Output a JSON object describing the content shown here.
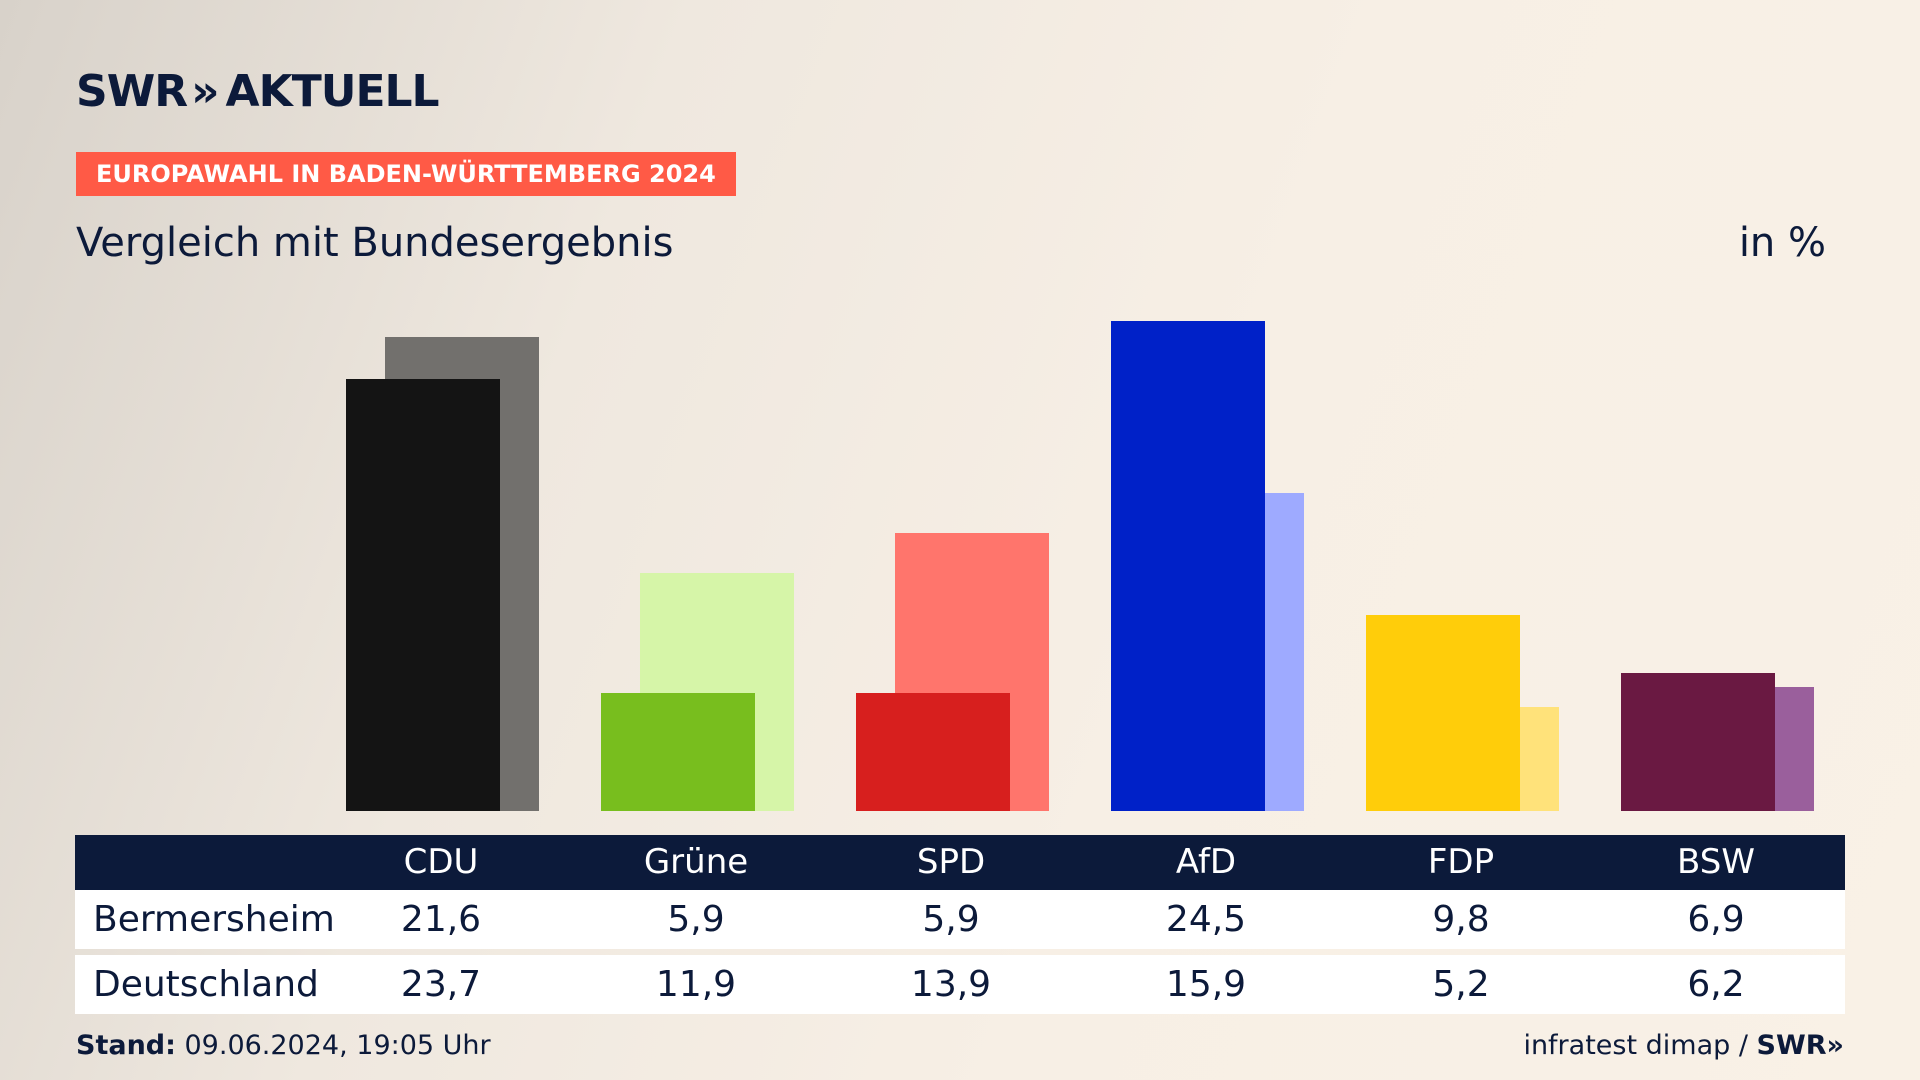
{
  "header": {
    "logo_word1": "SWR",
    "logo_chevrons": "»",
    "logo_word2": "AKTUELL",
    "tag": "EUROPAWAHL IN BADEN-WÜRTTEMBERG 2024",
    "subtitle": "Vergleich mit Bundesergebnis",
    "unit": "in %"
  },
  "chart_data": {
    "type": "bar",
    "categories": [
      "CDU",
      "Grüne",
      "SPD",
      "AfD",
      "FDP",
      "BSW"
    ],
    "series": [
      {
        "name": "Bermersheim",
        "values": [
          21.6,
          5.9,
          5.9,
          24.5,
          9.8,
          6.9
        ]
      },
      {
        "name": "Deutschland",
        "values": [
          23.7,
          11.9,
          13.9,
          15.9,
          5.2,
          6.2
        ]
      }
    ],
    "colors": {
      "Bermersheim": [
        "#141414",
        "#78be1e",
        "#d71f1e",
        "#0021c8",
        "#ffcd0a",
        "#6a1942"
      ],
      "Deutschland": [
        "#72706d",
        "#d6f5a8",
        "#ff756c",
        "#9eaaff",
        "#ffe27a",
        "#9a5f9c"
      ]
    },
    "ylim": [
      0,
      25
    ]
  },
  "table": {
    "row_labels": [
      "Bermersheim",
      "Deutschland"
    ],
    "rows": [
      [
        "21,6",
        "5,9",
        "5,9",
        "24,5",
        "9,8",
        "6,9"
      ],
      [
        "23,7",
        "11,9",
        "13,9",
        "15,9",
        "5,2",
        "6,2"
      ]
    ]
  },
  "footer": {
    "stand_label": "Stand:",
    "stand_value": " 09.06.2024, 19:05 Uhr",
    "source": "infratest dimap",
    "separator": " / ",
    "brand": "SWR»"
  }
}
